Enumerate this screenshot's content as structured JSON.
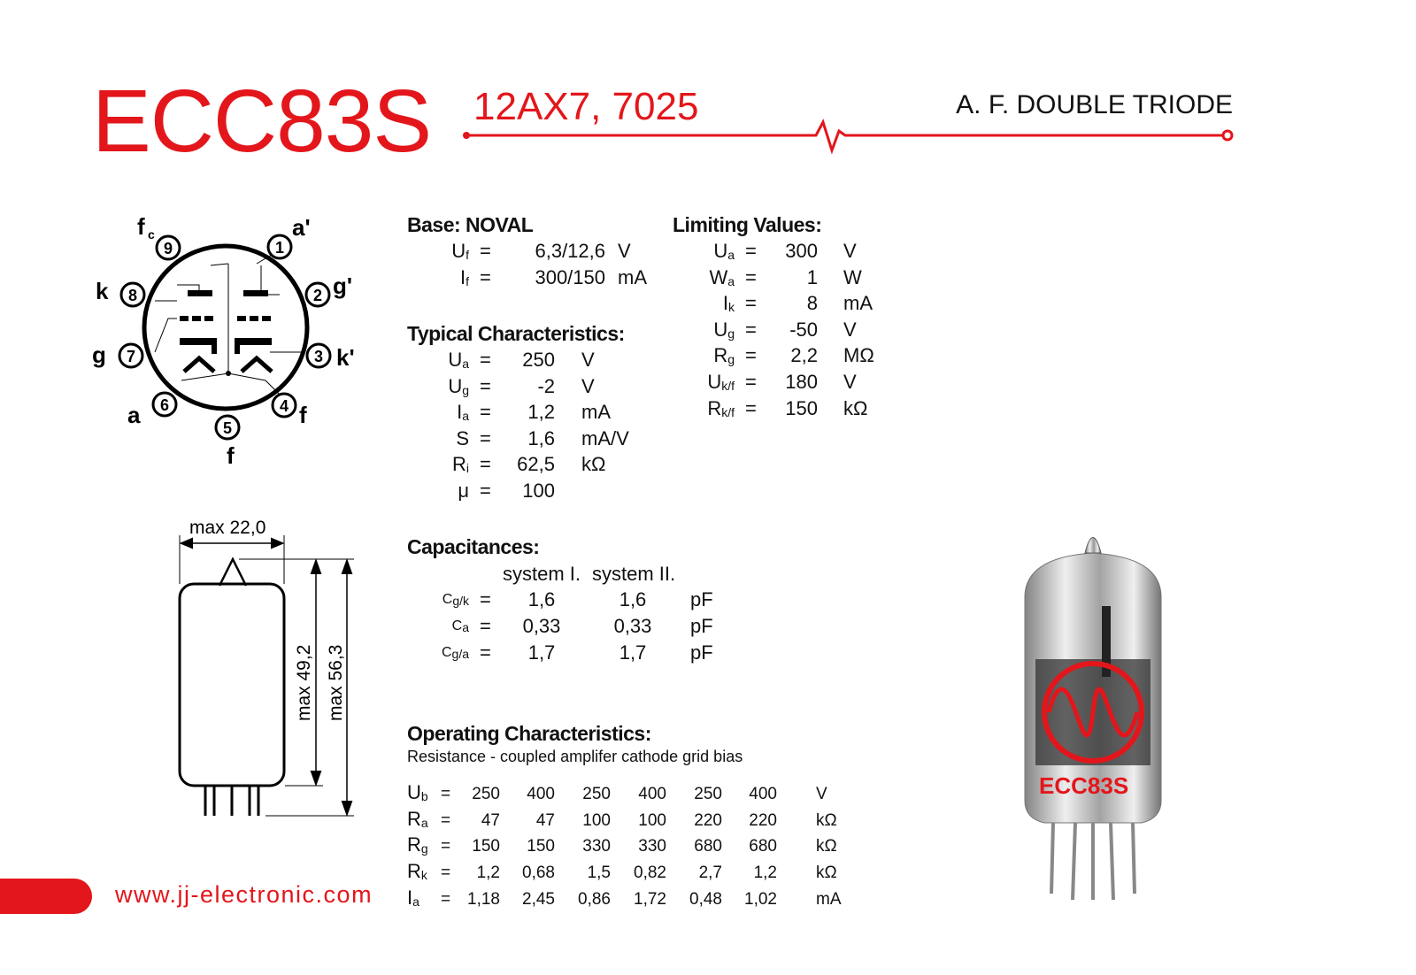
{
  "header": {
    "title": "ECC83S",
    "subtitle": "12AX7, 7025",
    "type": "A. F. DOUBLE TRIODE"
  },
  "colors": {
    "accent": "#e3161b"
  },
  "pinout": {
    "pins": [
      "1",
      "2",
      "3",
      "4",
      "5",
      "6",
      "7",
      "8",
      "9"
    ],
    "labels": {
      "p1": "a'",
      "p2": "g'",
      "p3": "k'",
      "p4": "f",
      "p5": "f",
      "p6": "a",
      "p7": "g",
      "p8": "k",
      "p9": "f",
      "p9_sub": "c"
    }
  },
  "outline": {
    "width": "max 22,0",
    "body_height": "max 49,2",
    "total_height": "max 56,3"
  },
  "base": {
    "heading": "Base: NOVAL",
    "rows": [
      {
        "sym": "U",
        "sub": "f",
        "eq": "=",
        "value": "6,3/12,6",
        "unit": "V"
      },
      {
        "sym": "I",
        "sub": "f",
        "eq": "=",
        "value": "300/150",
        "unit": "mA"
      }
    ]
  },
  "typical": {
    "heading": "Typical Characteristics:",
    "rows": [
      {
        "sym": "U",
        "sub": "a",
        "eq": "=",
        "value": "250",
        "unit": "V"
      },
      {
        "sym": "U",
        "sub": "g",
        "eq": "=",
        "value": "-2",
        "unit": "V"
      },
      {
        "sym": "I",
        "sub": "a",
        "eq": "=",
        "value": "1,2",
        "unit": "mA"
      },
      {
        "sym": "S",
        "sub": "",
        "eq": "=",
        "value": "1,6",
        "unit": "mA/V"
      },
      {
        "sym": "R",
        "sub": "i",
        "eq": "=",
        "value": "62,5",
        "unit": "kΩ"
      },
      {
        "sym": "μ",
        "sub": "",
        "eq": "=",
        "value": "100",
        "unit": ""
      }
    ]
  },
  "limiting": {
    "heading": "Limiting Values:",
    "rows": [
      {
        "sym": "U",
        "sub": "a",
        "eq": "=",
        "value": "300",
        "unit": "V"
      },
      {
        "sym": "W",
        "sub": "a",
        "eq": "=",
        "value": "1",
        "unit": "W"
      },
      {
        "sym": "I",
        "sub": "k",
        "eq": "=",
        "value": "8",
        "unit": "mA"
      },
      {
        "sym": "U",
        "sub": "g",
        "eq": "=",
        "value": "-50",
        "unit": "V"
      },
      {
        "sym": "R",
        "sub": "g",
        "eq": "=",
        "value": "2,2",
        "unit": "MΩ"
      },
      {
        "sym": "U",
        "sub": "k/f",
        "eq": "=",
        "value": "180",
        "unit": "V"
      },
      {
        "sym": "R",
        "sub": "k/f",
        "eq": "=",
        "value": "150",
        "unit": "kΩ"
      }
    ]
  },
  "capacitances": {
    "heading": "Capacitances:",
    "col1": "system I.",
    "col2": "system II.",
    "rows": [
      {
        "sym": "C",
        "sub": "g/k",
        "eq": "=",
        "v1": "1,6",
        "v2": "1,6",
        "unit": "pF"
      },
      {
        "sym": "C",
        "sub": "a",
        "eq": "=",
        "v1": "0,33",
        "v2": "0,33",
        "unit": "pF"
      },
      {
        "sym": "C",
        "sub": "g/a",
        "eq": "=",
        "v1": "1,7",
        "v2": "1,7",
        "unit": "pF"
      }
    ]
  },
  "operating": {
    "heading": "Operating Characteristics:",
    "note": "Resistance - coupled amplifer cathode grid bias",
    "rows": [
      {
        "sym": "U",
        "sub": "b",
        "eq": "=",
        "values": [
          "250",
          "400",
          "250",
          "400",
          "250",
          "400"
        ],
        "unit": "V"
      },
      {
        "sym": "R",
        "sub": "a",
        "eq": "=",
        "values": [
          "47",
          "47",
          "100",
          "100",
          "220",
          "220"
        ],
        "unit": "kΩ"
      },
      {
        "sym": "R",
        "sub": "g",
        "eq": "=",
        "values": [
          "150",
          "150",
          "330",
          "330",
          "680",
          "680"
        ],
        "unit": "kΩ"
      },
      {
        "sym": "R",
        "sub": "k",
        "eq": "=",
        "values": [
          "1,2",
          "0,68",
          "1,5",
          "0,82",
          "2,7",
          "1,2"
        ],
        "unit": "kΩ"
      },
      {
        "sym": "I",
        "sub": "a",
        "eq": "=",
        "values": [
          "1,18",
          "2,45",
          "0,86",
          "1,72",
          "0,48",
          "1,02"
        ],
        "unit": "mA"
      }
    ]
  },
  "footer": {
    "url": "www.jj-electronic.com"
  },
  "photo": {
    "logo_text": "JJ",
    "tube_print": "ECC83S"
  }
}
